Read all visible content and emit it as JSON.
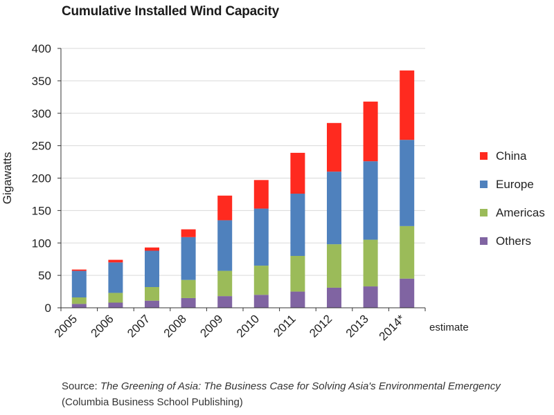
{
  "title": "Cumulative Installed Wind Capacity",
  "chart_data": {
    "type": "bar",
    "stacked": true,
    "title": "Cumulative Installed Wind Capacity",
    "xlabel": "",
    "ylabel": "Gigawatts",
    "ylim": [
      0,
      400
    ],
    "yticks": [
      0,
      50,
      100,
      150,
      200,
      250,
      300,
      350,
      400
    ],
    "categories": [
      "2005",
      "2006",
      "2007",
      "2008",
      "2009",
      "2010",
      "2011",
      "2012",
      "2013",
      "2014*"
    ],
    "x_annotation": "estimate",
    "legend_position": "right",
    "grid": "horizontal",
    "series": [
      {
        "name": "Others",
        "color": "#8064a2",
        "values": [
          6,
          8,
          11,
          15,
          18,
          20,
          25,
          31,
          33,
          45
        ]
      },
      {
        "name": "Americas",
        "color": "#9bbb59",
        "values": [
          10,
          15,
          21,
          28,
          39,
          45,
          55,
          67,
          72,
          81
        ]
      },
      {
        "name": "Europe",
        "color": "#4f81bd",
        "values": [
          41,
          47,
          56,
          66,
          78,
          88,
          96,
          112,
          121,
          133
        ]
      },
      {
        "name": "China",
        "color": "#ff2a1f",
        "values": [
          2,
          4,
          5,
          12,
          38,
          44,
          63,
          75,
          92,
          107
        ]
      }
    ],
    "legend_order": [
      "China",
      "Europe",
      "Americas",
      "Others"
    ]
  },
  "source": {
    "prefix": "Source: ",
    "book_title": "The Greening of Asia: The Business Case for Solving Asia's Environmental Emergency",
    "publisher": " (Columbia Business School Publishing)"
  }
}
